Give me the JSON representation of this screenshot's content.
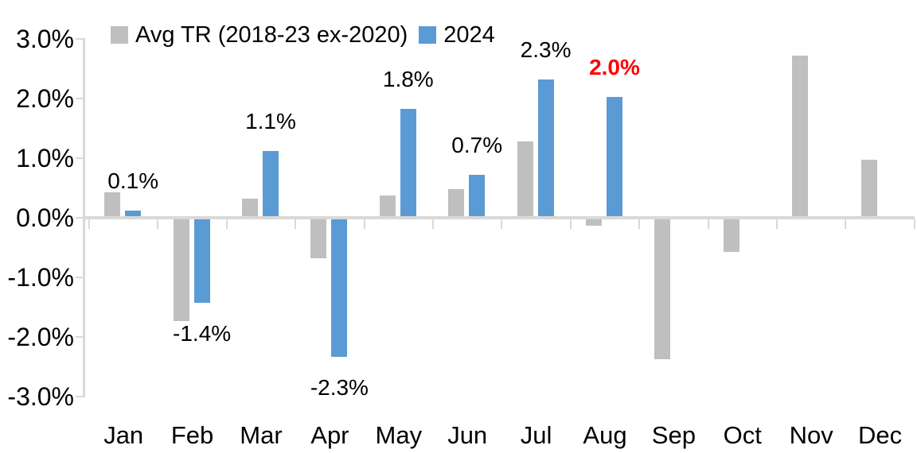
{
  "chart_data": {
    "type": "bar",
    "title": "",
    "xlabel": "",
    "ylabel": "",
    "categories": [
      "Jan",
      "Feb",
      "Mar",
      "Apr",
      "May",
      "Jun",
      "Jul",
      "Aug",
      "Sep",
      "Oct",
      "Nov",
      "Dec"
    ],
    "series": [
      {
        "name": "Avg TR (2018-23 ex-2020)",
        "color": "#BFBFBF",
        "values": [
          0.4,
          -1.7,
          0.3,
          -0.65,
          0.35,
          0.45,
          1.25,
          -0.1,
          -2.35,
          -0.55,
          2.7,
          0.95
        ]
      },
      {
        "name": "2024",
        "color": "#5B9BD5",
        "values": [
          0.1,
          -1.4,
          1.1,
          -2.3,
          1.8,
          0.7,
          2.3,
          2.0,
          null,
          null,
          null,
          null
        ]
      }
    ],
    "data_labels": [
      {
        "month": "Jan",
        "text": "0.1%",
        "color": "#000000",
        "bold": false
      },
      {
        "month": "Feb",
        "text": "-1.4%",
        "color": "#000000",
        "bold": false
      },
      {
        "month": "Mar",
        "text": "1.1%",
        "color": "#000000",
        "bold": false
      },
      {
        "month": "Apr",
        "text": "-2.3%",
        "color": "#000000",
        "bold": false
      },
      {
        "month": "May",
        "text": "1.8%",
        "color": "#000000",
        "bold": false
      },
      {
        "month": "Jun",
        "text": "0.7%",
        "color": "#000000",
        "bold": false
      },
      {
        "month": "Jul",
        "text": "2.3%",
        "color": "#000000",
        "bold": false
      },
      {
        "month": "Aug",
        "text": "2.0%",
        "color": "#FF0000",
        "bold": true
      }
    ],
    "y_axis": {
      "ylim": [
        -3,
        3
      ],
      "ticks": [
        {
          "value": 3,
          "label": "3.0%"
        },
        {
          "value": 2,
          "label": "2.0%"
        },
        {
          "value": 1,
          "label": "1.0%"
        },
        {
          "value": 0,
          "label": "0.0%"
        },
        {
          "value": -1,
          "label": "-1.0%"
        },
        {
          "value": -2,
          "label": "-2.0%"
        },
        {
          "value": -3,
          "label": "-3.0%"
        }
      ]
    },
    "legend_position": "top",
    "grid": false,
    "colors": {
      "axis": "#D9D9D9",
      "text": "#000000",
      "highlight": "#FF0000"
    }
  }
}
